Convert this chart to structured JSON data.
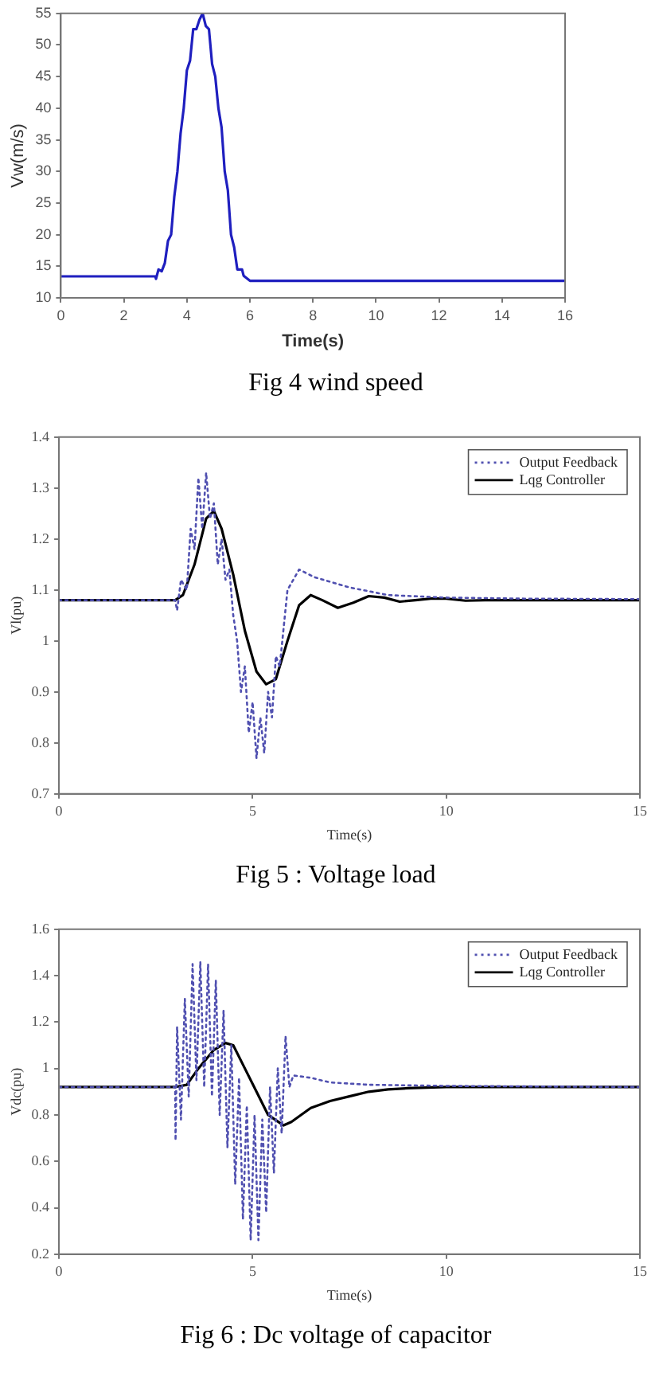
{
  "chart_data": [
    {
      "type": "line",
      "title": "Fig 4 wind speed",
      "xlabel": "Time(s)",
      "ylabel": "Vw(m/s)",
      "xlim": [
        0,
        16
      ],
      "xticks": [
        0,
        2,
        4,
        6,
        8,
        10,
        12,
        14,
        16
      ],
      "ylim": [
        10,
        55
      ],
      "yticks": [
        10,
        15,
        20,
        25,
        30,
        35,
        40,
        45,
        50,
        55
      ],
      "grid": false,
      "legend": false,
      "marker": "none",
      "series": [
        {
          "color": "#1f1fbf",
          "line_style": "solid",
          "x": [
            0,
            3,
            3.02,
            3.1,
            3.2,
            3.3,
            3.4,
            3.5,
            3.6,
            3.7,
            3.8,
            3.9,
            4.0,
            4.1,
            4.2,
            4.3,
            4.4,
            4.5,
            4.6,
            4.7,
            4.8,
            4.9,
            5.0,
            5.1,
            5.2,
            5.3,
            5.4,
            5.5,
            5.6,
            5.75,
            5.8,
            6,
            16
          ],
          "values": [
            13.4,
            13.4,
            13,
            14.5,
            14.2,
            15.5,
            19,
            20,
            26,
            30,
            36,
            40,
            46,
            47.5,
            52.5,
            52.5,
            54,
            55,
            53,
            52.5,
            47,
            45,
            40,
            37,
            30,
            27,
            20,
            18,
            14.5,
            14.5,
            13.5,
            12.7,
            12.7
          ]
        }
      ]
    },
    {
      "type": "line",
      "title": "Fig 5 : Voltage load",
      "xlabel": "Time(s)",
      "ylabel": "Vl(pu)",
      "xlim": [
        0,
        15
      ],
      "xticks": [
        0,
        5,
        10,
        15
      ],
      "ylim": [
        0.7,
        1.4
      ],
      "yticks": [
        0.7,
        0.8,
        0.9,
        1,
        1.1,
        1.2,
        1.3,
        1.4
      ],
      "grid": false,
      "legend": "top right",
      "marker": "none",
      "series": [
        {
          "name": "Output Feedback",
          "color": "#5050b0",
          "line_style": "dotted",
          "x": [
            0,
            3,
            3.05,
            3.15,
            3.3,
            3.4,
            3.5,
            3.6,
            3.7,
            3.8,
            3.9,
            4.0,
            4.1,
            4.2,
            4.3,
            4.4,
            4.5,
            4.6,
            4.7,
            4.8,
            4.9,
            5.0,
            5.1,
            5.2,
            5.3,
            5.4,
            5.5,
            5.6,
            5.7,
            5.9,
            6.2,
            6.6,
            7.5,
            8.5,
            10,
            12,
            15
          ],
          "values": [
            1.08,
            1.08,
            1.06,
            1.12,
            1.1,
            1.22,
            1.18,
            1.32,
            1.22,
            1.33,
            1.24,
            1.27,
            1.15,
            1.2,
            1.12,
            1.14,
            1.05,
            1.0,
            0.9,
            0.95,
            0.82,
            0.88,
            0.77,
            0.85,
            0.78,
            0.9,
            0.85,
            0.97,
            0.95,
            1.1,
            1.14,
            1.125,
            1.105,
            1.09,
            1.085,
            1.083,
            1.082
          ]
        },
        {
          "name": "Lqg Controller",
          "color": "#000000",
          "line_style": "solid",
          "x": [
            0,
            3,
            3.2,
            3.5,
            3.8,
            4.0,
            4.2,
            4.5,
            4.8,
            5.1,
            5.35,
            5.6,
            5.9,
            6.2,
            6.5,
            6.8,
            7.2,
            7.6,
            8.0,
            8.4,
            8.8,
            9.2,
            9.6,
            10,
            10.5,
            11,
            15
          ],
          "values": [
            1.08,
            1.08,
            1.09,
            1.15,
            1.24,
            1.255,
            1.22,
            1.13,
            1.02,
            0.94,
            0.915,
            0.925,
            1.0,
            1.07,
            1.09,
            1.08,
            1.065,
            1.075,
            1.088,
            1.085,
            1.077,
            1.08,
            1.083,
            1.083,
            1.079,
            1.08,
            1.08
          ]
        }
      ]
    },
    {
      "type": "line",
      "title": "Fig 6 : Dc voltage of capacitor",
      "xlabel": "Time(s)",
      "ylabel": "Vdc(pu)",
      "xlim": [
        0,
        15
      ],
      "xticks": [
        0,
        5,
        10,
        15
      ],
      "ylim": [
        0.2,
        1.6
      ],
      "yticks": [
        0.2,
        0.4,
        0.6,
        0.8,
        1,
        1.2,
        1.4,
        1.6
      ],
      "grid": false,
      "legend": "top right",
      "marker": "none",
      "series": [
        {
          "name": "Output Feedback",
          "color": "#5050b0",
          "line_style": "dotted",
          "x": [
            0,
            3,
            3.01,
            3.05,
            3.15,
            3.25,
            3.35,
            3.45,
            3.55,
            3.65,
            3.75,
            3.85,
            3.95,
            4.05,
            4.15,
            4.25,
            4.35,
            4.45,
            4.55,
            4.65,
            4.75,
            4.85,
            4.95,
            5.05,
            5.15,
            5.25,
            5.35,
            5.45,
            5.55,
            5.65,
            5.75,
            5.85,
            5.95,
            6.05,
            6.5,
            7,
            8,
            10,
            15
          ],
          "values": [
            0.92,
            0.92,
            0.69,
            1.18,
            0.78,
            1.3,
            0.88,
            1.45,
            0.95,
            1.46,
            0.92,
            1.45,
            0.88,
            1.38,
            0.8,
            1.25,
            0.66,
            1.1,
            0.5,
            0.96,
            0.35,
            0.84,
            0.26,
            0.8,
            0.26,
            0.78,
            0.38,
            0.92,
            0.55,
            1.0,
            0.72,
            1.14,
            0.92,
            0.97,
            0.96,
            0.94,
            0.93,
            0.925,
            0.92
          ]
        },
        {
          "name": "Lqg Controller",
          "color": "#000000",
          "line_style": "solid",
          "x": [
            0,
            3,
            3.3,
            3.6,
            4.0,
            4.3,
            4.5,
            4.8,
            5.1,
            5.4,
            5.8,
            6.0,
            6.5,
            7,
            7.5,
            8,
            8.5,
            9,
            10,
            15
          ],
          "values": [
            0.92,
            0.92,
            0.93,
            1.0,
            1.08,
            1.11,
            1.1,
            1.0,
            0.9,
            0.8,
            0.755,
            0.77,
            0.83,
            0.86,
            0.88,
            0.9,
            0.91,
            0.915,
            0.92,
            0.92
          ]
        }
      ]
    }
  ]
}
